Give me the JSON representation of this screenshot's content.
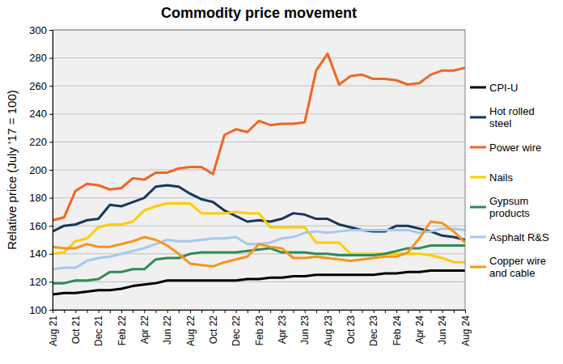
{
  "chart_data": {
    "type": "line",
    "title": "Commodity price movement",
    "y_label": "Relative price (July '17 = 100)",
    "categories": [
      "Aug 21",
      null,
      "Oct 21",
      null,
      "Dec 21",
      null,
      "Feb 22",
      null,
      "Apr 22",
      null,
      "Jun 22",
      null,
      "Aug 22",
      null,
      "Oct 22",
      null,
      "Dec 22",
      null,
      "Feb 23",
      null,
      "Apr 23",
      null,
      "Jun 23",
      null,
      "Aug 23",
      null,
      "Oct 23",
      null,
      "Dec 23",
      null,
      "Feb 24",
      null,
      "Apr 24",
      null,
      "Jun 24",
      null,
      "Aug 24"
    ],
    "ylim": [
      100,
      300
    ],
    "yticks": [
      100,
      120,
      140,
      160,
      180,
      200,
      220,
      240,
      260,
      280,
      300
    ],
    "grid": true,
    "legend": "right",
    "series": [
      {
        "name": "CPI-U",
        "color": "#000000",
        "values": [
          111,
          112,
          112,
          113,
          114,
          114,
          115,
          117,
          118,
          119,
          121,
          121,
          121,
          121,
          121,
          121,
          121,
          122,
          122,
          123,
          123,
          124,
          124,
          125,
          125,
          125,
          125,
          125,
          125,
          126,
          126,
          127,
          127,
          128,
          128,
          128,
          128
        ]
      },
      {
        "name": "Hot rolled steel",
        "color": "#17375e",
        "values": [
          156,
          160,
          161,
          164,
          165,
          175,
          174,
          177,
          180,
          188,
          189,
          188,
          183,
          179,
          177,
          171,
          167,
          163,
          164,
          163,
          165,
          169,
          168,
          165,
          165,
          161,
          159,
          157,
          156,
          156,
          160,
          160,
          158,
          156,
          153,
          152,
          150
        ]
      },
      {
        "name": "Power wire",
        "color": "#f26522",
        "values": [
          164,
          166,
          185,
          190,
          189,
          186,
          187,
          194,
          193,
          198,
          198,
          201,
          202,
          202,
          197,
          225,
          229,
          227,
          235,
          232,
          233,
          233,
          234,
          271,
          283,
          261,
          267,
          268,
          265,
          265,
          264,
          261,
          262,
          268,
          271,
          271,
          273
        ]
      },
      {
        "name": "Nails",
        "color": "#ffcc00",
        "values": [
          140,
          141,
          149,
          151,
          159,
          161,
          161,
          163,
          171,
          174,
          176,
          176,
          176,
          169,
          169,
          169,
          170,
          169,
          169,
          159,
          159,
          159,
          159,
          148,
          148,
          148,
          140,
          140,
          140,
          140,
          140,
          140,
          140,
          139,
          137,
          134,
          134
        ]
      },
      {
        "name": "Gypsum products",
        "color": "#2e8b57",
        "values": [
          119,
          119,
          121,
          121,
          122,
          127,
          127,
          129,
          129,
          136,
          137,
          137,
          140,
          141,
          141,
          141,
          141,
          142,
          143,
          144,
          141,
          141,
          141,
          140,
          140,
          139,
          139,
          139,
          139,
          140,
          142,
          144,
          144,
          146,
          146,
          146,
          146
        ]
      },
      {
        "name": "Asphalt R&S",
        "color": "#a6c8ef",
        "values": [
          129,
          130,
          130,
          135,
          137,
          138,
          140,
          142,
          144,
          147,
          150,
          149,
          149,
          150,
          151,
          151,
          152,
          147,
          147,
          148,
          151,
          152,
          155,
          156,
          155,
          156,
          157,
          157,
          157,
          157,
          157,
          157,
          155,
          156,
          158,
          158,
          157
        ]
      },
      {
        "name": "Copper wire and cable",
        "color": "#f7941d",
        "values": [
          145,
          144,
          144,
          147,
          145,
          145,
          147,
          149,
          152,
          150,
          146,
          140,
          133,
          132,
          131,
          134,
          136,
          138,
          147,
          145,
          144,
          137,
          137,
          138,
          137,
          136,
          135,
          136,
          137,
          138,
          138,
          141,
          151,
          163,
          162,
          156,
          148
        ]
      }
    ]
  }
}
